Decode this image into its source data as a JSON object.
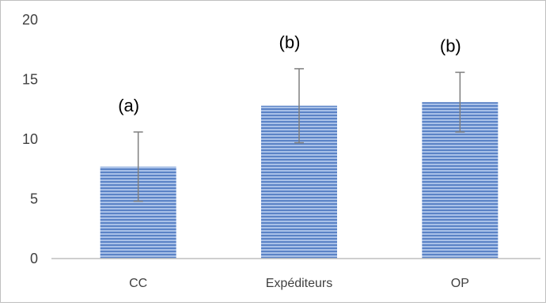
{
  "chart_data": {
    "type": "bar",
    "categories": [
      "CC",
      "Expéditeurs",
      "OP"
    ],
    "values": [
      7.7,
      12.8,
      13.1
    ],
    "error": [
      2.9,
      3.1,
      2.5
    ],
    "annotations": [
      "(a)",
      "(b)",
      "(b)"
    ],
    "ylim": [
      0,
      20
    ],
    "yticks": [
      0,
      5,
      10,
      15,
      20
    ],
    "xlabel": "",
    "ylabel": "",
    "title": "",
    "grid": false,
    "colors": {
      "bar_fill": "#5b83c6",
      "bar_stripe": "#a9c1e8",
      "error_bar": "#7f7f7f",
      "axis": "#bfbfbf"
    }
  }
}
